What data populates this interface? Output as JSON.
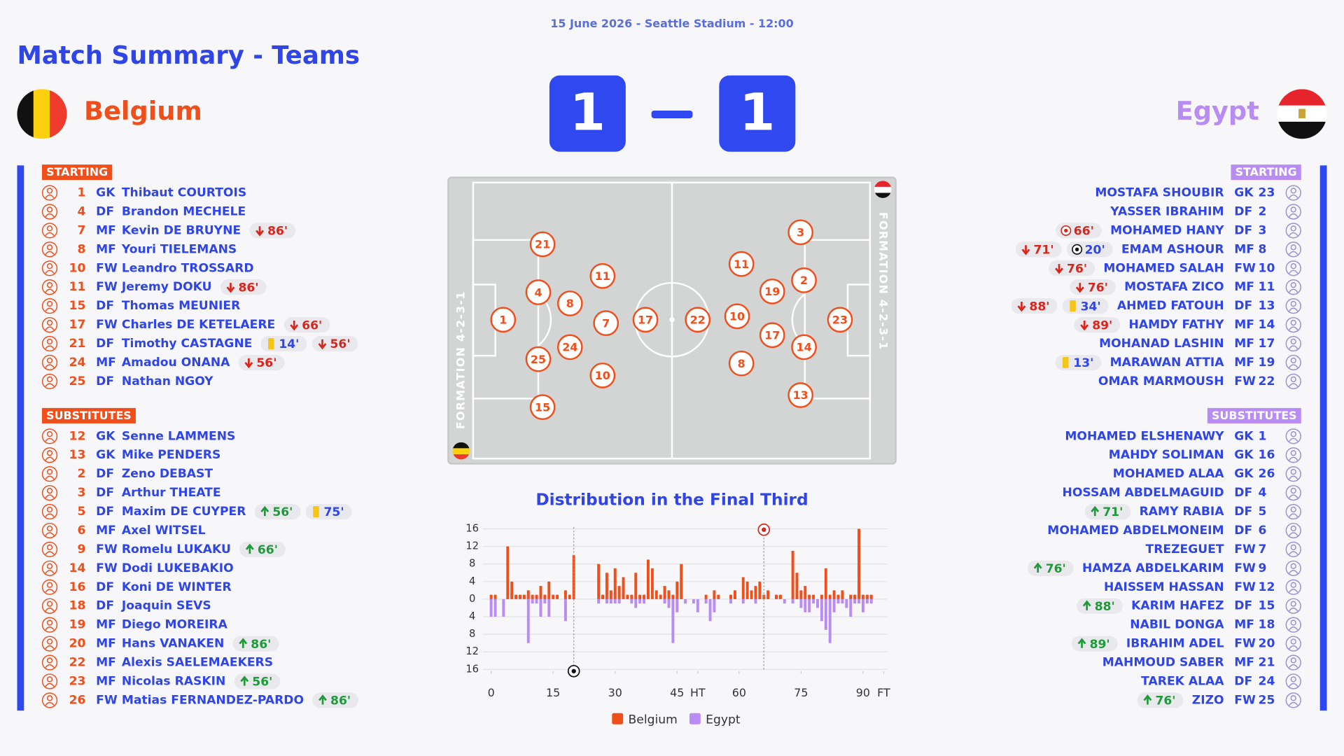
{
  "header": {
    "info": "15 June 2026 - Seattle Stadium - 12:00",
    "title": "Match Summary - Teams"
  },
  "match": {
    "home": {
      "name": "Belgium",
      "score": 1,
      "formation": "FORMATION 4-2-3-1",
      "starting_label": "STARTING",
      "substitutes_label": "SUBSTITUTES",
      "pitch": [
        1,
        4,
        25,
        21,
        15,
        8,
        24,
        11,
        7,
        10,
        17
      ],
      "starting": [
        {
          "number": 1,
          "position": "GK",
          "name": "Thibaut COURTOIS",
          "events": []
        },
        {
          "number": 4,
          "position": "DF",
          "name": "Brandon MECHELE",
          "events": []
        },
        {
          "number": 7,
          "position": "MF",
          "name": "Kevin DE BRUYNE",
          "events": [
            {
              "type": "out",
              "label": "86'"
            }
          ]
        },
        {
          "number": 8,
          "position": "MF",
          "name": "Youri TIELEMANS",
          "events": []
        },
        {
          "number": 10,
          "position": "FW",
          "name": "Leandro TROSSARD",
          "events": []
        },
        {
          "number": 11,
          "position": "FW",
          "name": "Jeremy DOKU",
          "events": [
            {
              "type": "out",
              "label": "86'"
            }
          ]
        },
        {
          "number": 15,
          "position": "DF",
          "name": "Thomas MEUNIER",
          "events": []
        },
        {
          "number": 17,
          "position": "FW",
          "name": "Charles DE KETELAERE",
          "events": [
            {
              "type": "out",
              "label": "66'"
            }
          ]
        },
        {
          "number": 21,
          "position": "DF",
          "name": "Timothy CASTAGNE",
          "events": [
            {
              "type": "yellow",
              "label": "14'"
            },
            {
              "type": "out",
              "label": "56'"
            }
          ]
        },
        {
          "number": 24,
          "position": "MF",
          "name": "Amadou ONANA",
          "events": [
            {
              "type": "out",
              "label": "56'"
            }
          ]
        },
        {
          "number": 25,
          "position": "DF",
          "name": "Nathan NGOY",
          "events": []
        }
      ],
      "substitutes": [
        {
          "number": 12,
          "position": "GK",
          "name": "Senne LAMMENS",
          "events": []
        },
        {
          "number": 13,
          "position": "GK",
          "name": "Mike PENDERS",
          "events": []
        },
        {
          "number": 2,
          "position": "DF",
          "name": "Zeno DEBAST",
          "events": []
        },
        {
          "number": 3,
          "position": "DF",
          "name": "Arthur THEATE",
          "events": []
        },
        {
          "number": 5,
          "position": "DF",
          "name": "Maxim DE CUYPER",
          "events": [
            {
              "type": "in",
              "label": "56'"
            },
            {
              "type": "yellow",
              "label": "75'"
            }
          ]
        },
        {
          "number": 6,
          "position": "MF",
          "name": "Axel WITSEL",
          "events": []
        },
        {
          "number": 9,
          "position": "FW",
          "name": "Romelu LUKAKU",
          "events": [
            {
              "type": "in",
              "label": "66'"
            }
          ]
        },
        {
          "number": 14,
          "position": "FW",
          "name": "Dodi LUKEBAKIO",
          "events": []
        },
        {
          "number": 16,
          "position": "DF",
          "name": "Koni DE WINTER",
          "events": []
        },
        {
          "number": 18,
          "position": "DF",
          "name": "Joaquin SEVS",
          "events": []
        },
        {
          "number": 19,
          "position": "MF",
          "name": "Diego MOREIRA",
          "events": []
        },
        {
          "number": 20,
          "position": "MF",
          "name": "Hans VANAKEN",
          "events": [
            {
              "type": "in",
              "label": "86'"
            }
          ]
        },
        {
          "number": 22,
          "position": "MF",
          "name": "Alexis SAELEMAEKERS",
          "events": []
        },
        {
          "number": 23,
          "position": "MF",
          "name": "Nicolas RASKIN",
          "events": [
            {
              "type": "in",
              "label": "56'"
            }
          ]
        },
        {
          "number": 26,
          "position": "FW",
          "name": "Matias FERNANDEZ-PARDO",
          "events": [
            {
              "type": "in",
              "label": "86'"
            }
          ]
        }
      ]
    },
    "away": {
      "name": "Egypt",
      "score": 1,
      "formation": "FORMATION 4-2-3-1",
      "starting_label": "STARTING",
      "substitutes_label": "SUBSTITUTES",
      "pitch": [
        22,
        11,
        10,
        8,
        19,
        17,
        3,
        2,
        14,
        13,
        23
      ],
      "starting": [
        {
          "number": 23,
          "position": "GK",
          "name": "MOSTAFA SHOUBIR",
          "events": []
        },
        {
          "number": 2,
          "position": "DF",
          "name": "YASSER IBRAHIM",
          "events": []
        },
        {
          "number": 3,
          "position": "DF",
          "name": "MOHAMED HANY",
          "events": [
            {
              "type": "own_goal",
              "label": "66'"
            }
          ]
        },
        {
          "number": 8,
          "position": "MF",
          "name": "EMAM ASHOUR",
          "events": [
            {
              "type": "out",
              "label": "71'"
            },
            {
              "type": "goal",
              "label": "20'"
            }
          ]
        },
        {
          "number": 10,
          "position": "FW",
          "name": "MOHAMED SALAH",
          "events": [
            {
              "type": "out",
              "label": "76'"
            }
          ]
        },
        {
          "number": 11,
          "position": "MF",
          "name": "MOSTAFA ZICO",
          "events": [
            {
              "type": "out",
              "label": "76'"
            }
          ]
        },
        {
          "number": 13,
          "position": "DF",
          "name": "AHMED FATOUH",
          "events": [
            {
              "type": "out",
              "label": "88'"
            },
            {
              "type": "yellow",
              "label": "34'"
            }
          ]
        },
        {
          "number": 14,
          "position": "MF",
          "name": "HAMDY FATHY",
          "events": [
            {
              "type": "out",
              "label": "89'"
            }
          ]
        },
        {
          "number": 17,
          "position": "MF",
          "name": "MOHANAD LASHIN",
          "events": []
        },
        {
          "number": 19,
          "position": "MF",
          "name": "MARAWAN ATTIA",
          "events": [
            {
              "type": "yellow",
              "label": "13'"
            }
          ]
        },
        {
          "number": 22,
          "position": "FW",
          "name": "OMAR MARMOUSH",
          "events": []
        }
      ],
      "substitutes": [
        {
          "number": 1,
          "position": "GK",
          "name": "MOHAMED ELSHENAWY",
          "events": []
        },
        {
          "number": 16,
          "position": "GK",
          "name": "MAHDY SOLIMAN",
          "events": []
        },
        {
          "number": 26,
          "position": "GK",
          "name": "MOHAMED ALAA",
          "events": []
        },
        {
          "number": 4,
          "position": "DF",
          "name": "HOSSAM ABDELMAGUID",
          "events": []
        },
        {
          "number": 5,
          "position": "DF",
          "name": "RAMY RABIA",
          "events": [
            {
              "type": "in",
              "label": "71'"
            }
          ]
        },
        {
          "number": 6,
          "position": "DF",
          "name": "MOHAMED ABDELMONEIM",
          "events": []
        },
        {
          "number": 7,
          "position": "FW",
          "name": "TREZEGUET",
          "events": []
        },
        {
          "number": 9,
          "position": "FW",
          "name": "HAMZA ABDELKARIM",
          "events": [
            {
              "type": "in",
              "label": "76'"
            }
          ]
        },
        {
          "number": 12,
          "position": "FW",
          "name": "HAISSEM HASSAN",
          "events": []
        },
        {
          "number": 15,
          "position": "DF",
          "name": "KARIM HAFEZ",
          "events": [
            {
              "type": "in",
              "label": "88'"
            }
          ]
        },
        {
          "number": 18,
          "position": "MF",
          "name": "NABIL DONGA",
          "events": []
        },
        {
          "number": 20,
          "position": "FW",
          "name": "IBRAHIM ADEL",
          "events": [
            {
              "type": "in",
              "label": "89'"
            }
          ]
        },
        {
          "number": 21,
          "position": "MF",
          "name": "MAHMOUD SABER",
          "events": []
        },
        {
          "number": 24,
          "position": "DF",
          "name": "TAREK ALAA",
          "events": []
        },
        {
          "number": 25,
          "position": "FW",
          "name": "ZIZO",
          "events": [
            {
              "type": "in",
              "label": "76'"
            }
          ]
        }
      ]
    }
  },
  "chart_data": {
    "type": "bar",
    "title": "Distribution in the Final Third",
    "x": [
      0,
      1,
      2,
      3,
      4,
      5,
      6,
      7,
      8,
      9,
      10,
      11,
      12,
      13,
      14,
      15,
      16,
      17,
      18,
      19,
      20,
      21,
      22,
      23,
      24,
      25,
      26,
      27,
      28,
      29,
      30,
      31,
      32,
      33,
      34,
      35,
      36,
      37,
      38,
      39,
      40,
      41,
      42,
      43,
      44,
      45,
      46,
      47,
      48,
      49,
      50,
      51,
      52,
      53,
      54,
      55,
      56,
      57,
      58,
      59,
      60,
      61,
      62,
      63,
      64,
      65,
      66,
      67,
      68,
      69,
      70,
      71,
      72,
      73,
      74,
      75,
      76,
      77,
      78,
      79,
      80,
      81,
      82,
      83,
      84,
      85,
      86,
      87,
      88,
      89,
      90,
      91,
      92,
      93,
      94,
      95
    ],
    "series": [
      {
        "name": "Belgium",
        "color": "#f04e1a",
        "values": [
          1,
          1,
          0,
          0,
          12,
          4,
          1,
          1,
          1,
          2,
          1,
          1,
          3,
          1,
          4,
          1,
          1,
          0,
          2,
          1,
          10,
          0,
          0,
          0,
          0,
          0,
          8,
          1,
          6,
          2,
          7,
          3,
          5,
          1,
          1,
          6,
          1,
          1,
          9,
          7,
          2,
          1,
          3,
          2,
          1,
          4,
          8,
          0,
          0,
          0,
          0,
          0,
          1,
          0,
          2,
          1,
          0,
          0,
          1,
          2,
          0,
          5,
          4,
          2,
          3,
          4,
          1,
          2,
          0,
          1,
          1,
          0,
          0,
          11,
          6,
          2,
          3,
          1,
          1,
          0,
          1,
          7,
          1,
          2,
          1,
          2,
          0,
          1,
          1,
          16,
          1,
          1,
          1,
          0,
          0,
          0
        ]
      },
      {
        "name": "Egypt",
        "color": "#b98cf3",
        "values": [
          -4,
          -4,
          0,
          -4,
          0,
          0,
          0,
          0,
          0,
          -10,
          -1,
          -1,
          -4,
          -1,
          -4,
          0,
          0,
          0,
          -5,
          0,
          0,
          0,
          0,
          0,
          0,
          0,
          -1,
          0,
          -1,
          -1,
          -1,
          -1,
          0,
          0,
          -1,
          -2,
          -1,
          -1,
          0,
          0,
          0,
          0,
          -1,
          -2,
          -10,
          -3,
          0,
          -1,
          0,
          -1,
          -3,
          0,
          -1,
          -5,
          -3,
          0,
          0,
          0,
          -1,
          0,
          0,
          -1,
          0,
          0,
          -1,
          0,
          0,
          0,
          0,
          0,
          0,
          -1,
          0,
          -1,
          0,
          -2,
          -3,
          -3,
          -1,
          -2,
          -5,
          -7,
          -10,
          -3,
          -1,
          -1,
          -2,
          -4,
          -1,
          -1,
          -3,
          -1,
          -1,
          0,
          0,
          0
        ]
      }
    ],
    "goal_markers": [
      {
        "x": 66,
        "series": 0
      },
      {
        "x": 20,
        "series": 1
      }
    ],
    "xlim": [
      0,
      95
    ],
    "xticks": [
      0,
      15,
      30,
      45,
      {
        "value": 50,
        "label": "HT"
      },
      60,
      75,
      90,
      {
        "value": 95,
        "label": "FT"
      }
    ],
    "ylim": [
      -16,
      16
    ],
    "yticks": [
      16,
      12,
      8,
      4,
      0,
      {
        "value": -4,
        "label": "4"
      },
      {
        "value": -8,
        "label": "8"
      },
      {
        "value": -12,
        "label": "12"
      },
      {
        "value": -16,
        "label": "16"
      }
    ],
    "grid": true,
    "legend": "bottom"
  }
}
